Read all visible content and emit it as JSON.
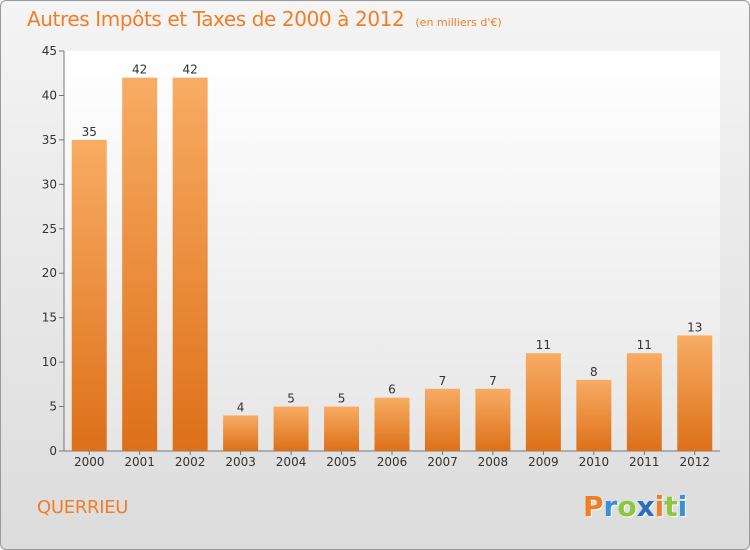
{
  "title": "Autres Impôts et Taxes de 2000 à 2012",
  "unit_label": "(en milliers d'€)",
  "commune": "QUERRIEU",
  "logo": {
    "letters": [
      "P",
      "r",
      "o",
      "x",
      "i",
      "t",
      "i"
    ],
    "colors": [
      "#f07e26",
      "#3a8fd6",
      "#8dc63f",
      "#2a6fbf",
      "#f07e26",
      "#8dc63f",
      "#3a8fd6"
    ]
  },
  "colors": {
    "accent": "#f07e26",
    "bar_light": "#f6a75c",
    "bar_dark": "#e0741f"
  },
  "chart_data": {
    "type": "bar",
    "categories": [
      "2000",
      "2001",
      "2002",
      "2003",
      "2004",
      "2005",
      "2006",
      "2007",
      "2008",
      "2009",
      "2010",
      "2011",
      "2012"
    ],
    "values": [
      35,
      42,
      42,
      4,
      5,
      5,
      6,
      7,
      7,
      11,
      8,
      11,
      13
    ],
    "title": "Autres Impôts et Taxes de 2000 à 2012",
    "xlabel": "",
    "ylabel": "",
    "ylim": [
      0,
      45
    ],
    "yticks": [
      0,
      5,
      10,
      15,
      20,
      25,
      30,
      35,
      40,
      45
    ],
    "grid": false,
    "legend": "none"
  }
}
